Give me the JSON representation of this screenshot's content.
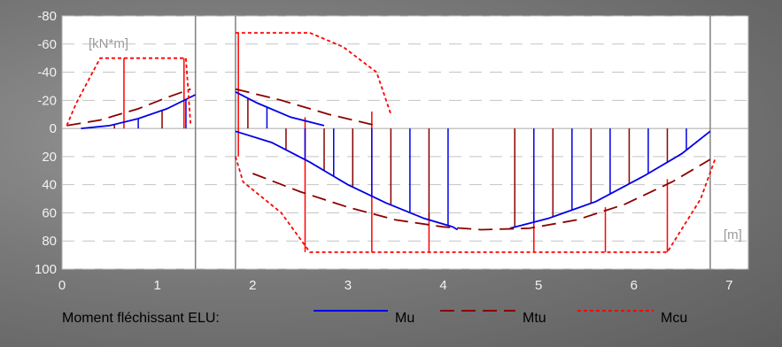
{
  "chart_data": {
    "type": "line",
    "title": "",
    "y_unit": "[kN*m]",
    "x_unit": "[m]",
    "xlim": [
      0,
      7.2
    ],
    "ylim": [
      100,
      -80
    ],
    "x_ticks": [
      "0",
      "1",
      "2",
      "3",
      "4",
      "5",
      "6",
      "7"
    ],
    "y_ticks": [
      "-80",
      "-60",
      "-40",
      "-20",
      "0",
      "20",
      "40",
      "60",
      "80",
      "100"
    ],
    "grid": true,
    "supports_x": [
      1.4,
      1.82,
      6.8
    ],
    "legend_title": "Moment fléchissant ELU:",
    "legend_placement": "bottom",
    "series": [
      {
        "name": "Mu",
        "color": "#0000e6",
        "style": "solid",
        "segments": [
          [
            [
              0.2,
              0
            ],
            [
              0.5,
              -2
            ],
            [
              0.8,
              -7
            ],
            [
              1.1,
              -14
            ],
            [
              1.4,
              -24
            ]
          ],
          [
            [
              1.82,
              -26
            ],
            [
              2.05,
              -18
            ],
            [
              2.4,
              -8
            ],
            [
              2.75,
              -2
            ]
          ],
          [
            [
              1.82,
              2
            ],
            [
              2.2,
              10
            ],
            [
              2.6,
              24
            ],
            [
              3.0,
              40
            ],
            [
              3.4,
              53
            ],
            [
              3.8,
              64
            ],
            [
              4.1,
              70
            ],
            [
              4.15,
              72
            ]
          ],
          [
            [
              4.7,
              71
            ],
            [
              5.1,
              64
            ],
            [
              5.6,
              52
            ],
            [
              6.1,
              34
            ],
            [
              6.5,
              18
            ],
            [
              6.8,
              2
            ]
          ]
        ],
        "hatch_x": [
          0.3,
          0.55,
          0.8,
          1.05,
          1.3,
          1.95,
          2.15,
          2.35,
          2.55,
          2.75,
          2.85,
          3.05,
          3.25,
          3.45,
          3.65,
          3.85,
          4.05,
          4.75,
          4.95,
          5.15,
          5.35,
          5.55,
          5.75,
          5.95,
          6.15,
          6.35,
          6.55
        ]
      },
      {
        "name": "Mtu",
        "color": "#8b0000",
        "style": "dashed",
        "segments": [
          [
            [
              0.05,
              -2
            ],
            [
              0.4,
              -6
            ],
            [
              0.8,
              -14
            ],
            [
              1.1,
              -22
            ],
            [
              1.35,
              -28
            ]
          ],
          [
            [
              1.82,
              -28
            ],
            [
              2.3,
              -20
            ],
            [
              2.8,
              -10
            ],
            [
              3.3,
              -2
            ]
          ],
          [
            [
              2.0,
              32
            ],
            [
              2.5,
              45
            ],
            [
              3.0,
              56
            ],
            [
              3.5,
              65
            ],
            [
              4.0,
              70
            ],
            [
              4.4,
              72
            ],
            [
              4.9,
              71
            ],
            [
              5.4,
              65
            ],
            [
              5.9,
              54
            ],
            [
              6.4,
              38
            ],
            [
              6.8,
              22
            ]
          ]
        ]
      },
      {
        "name": "Mcu",
        "color": "#ff0000",
        "style": "dotted",
        "segments": [
          [
            [
              0.05,
              -2
            ],
            [
              0.15,
              -18
            ],
            [
              0.4,
              -50
            ],
            [
              1.3,
              -50
            ],
            [
              1.35,
              -2
            ]
          ],
          [
            [
              1.82,
              -68
            ],
            [
              2.6,
              -68
            ],
            [
              2.95,
              -58
            ],
            [
              3.3,
              -40
            ],
            [
              3.45,
              -10
            ]
          ],
          [
            [
              1.82,
              20
            ],
            [
              1.9,
              38
            ],
            [
              2.3,
              60
            ],
            [
              2.6,
              88
            ],
            [
              6.35,
              88
            ],
            [
              6.7,
              50
            ],
            [
              6.85,
              22
            ]
          ]
        ],
        "hatch": [
          {
            "x": 0.65,
            "y0": -50,
            "y1": 0
          },
          {
            "x": 1.28,
            "y0": -50,
            "y1": 0
          },
          {
            "x": 1.85,
            "y0": -68,
            "y1": 20
          },
          {
            "x": 2.55,
            "y0": -8,
            "y1": 88
          },
          {
            "x": 3.25,
            "y0": -12,
            "y1": 88
          },
          {
            "x": 3.85,
            "y0": 60,
            "y1": 88
          },
          {
            "x": 4.95,
            "y0": 60,
            "y1": 88
          },
          {
            "x": 5.7,
            "y0": 56,
            "y1": 88
          },
          {
            "x": 6.35,
            "y0": 36,
            "y1": 88
          }
        ]
      }
    ]
  }
}
